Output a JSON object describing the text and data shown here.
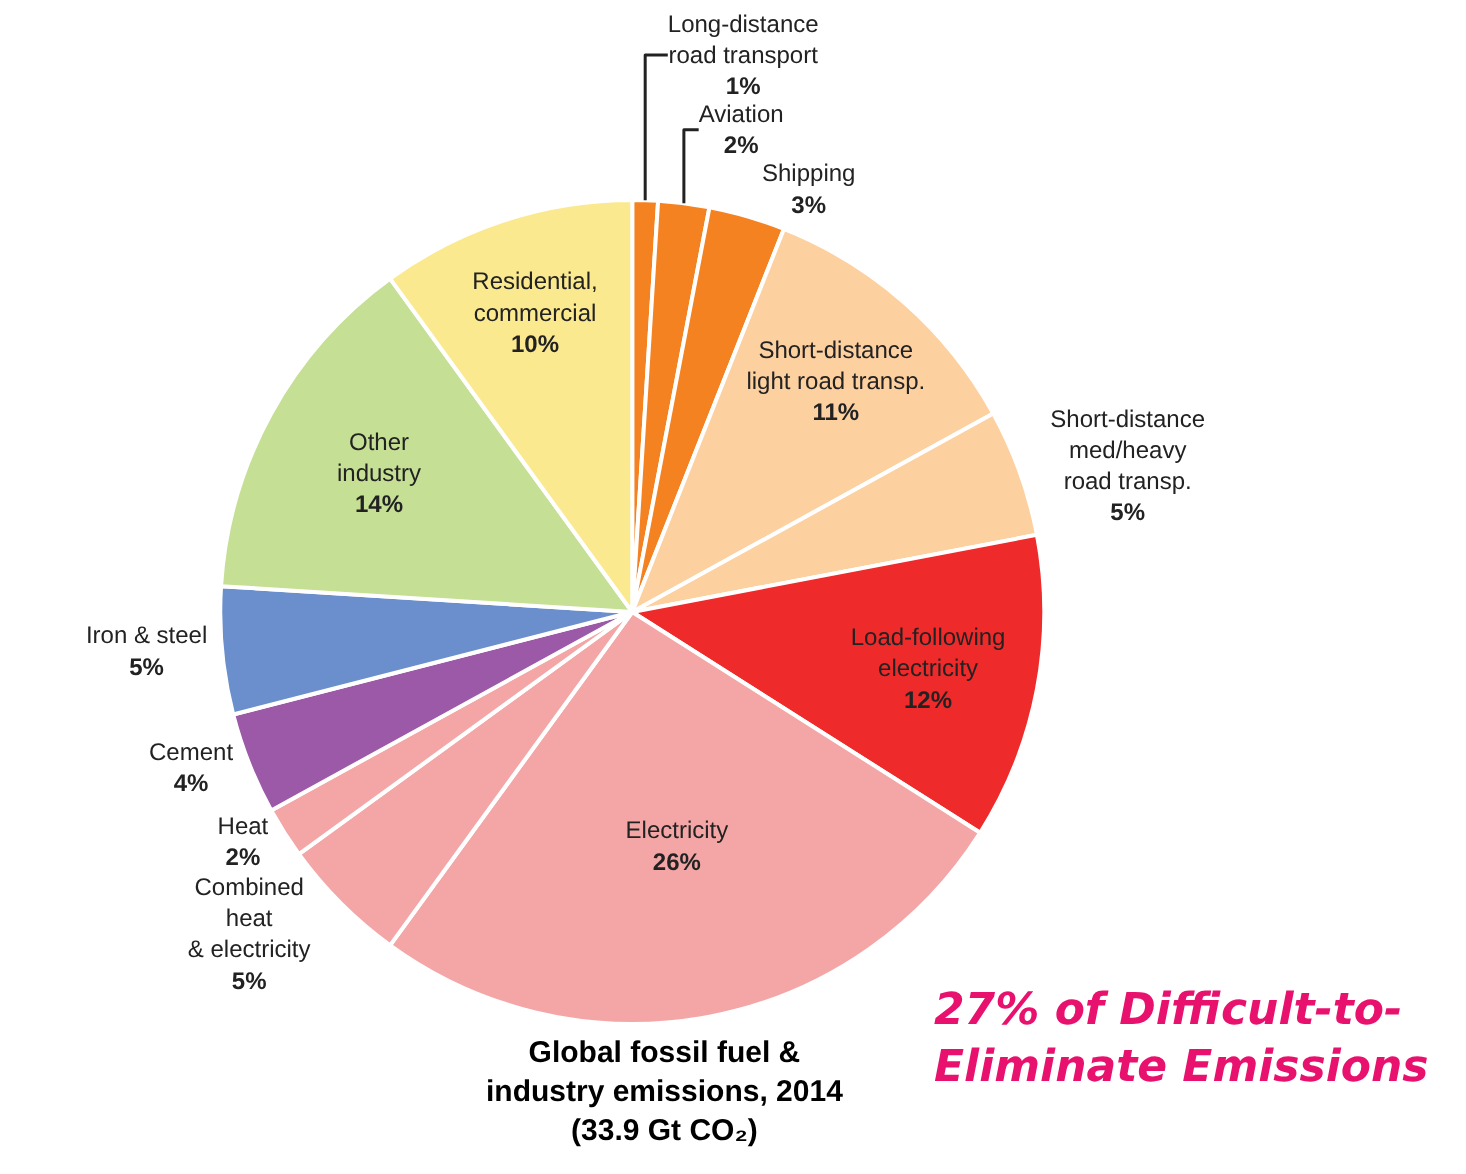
{
  "chart_data": {
    "type": "pie",
    "title": "Global fossil fuel &\nindustry emissions, 2014\n(33.9 Gt CO₂)",
    "categories": [
      "Long-distance\nroad transport",
      "Aviation",
      "Shipping",
      "Short-distance\nlight road transp.",
      "Short-distance\nmed/heavy\nroad transp.",
      "Load-following\nelectricity",
      "Electricity",
      "Combined\nheat\n& electricity",
      "Heat",
      "Cement",
      "Iron & steel",
      "Other\nindustry",
      "Residential,\ncommercial"
    ],
    "values": [
      1,
      2,
      3,
      11,
      5,
      12,
      26,
      5,
      2,
      4,
      5,
      14,
      10
    ],
    "value_labels": [
      "1%",
      "2%",
      "3%",
      "11%",
      "5%",
      "12%",
      "26%",
      "5%",
      "2%",
      "4%",
      "5%",
      "14%",
      "10%"
    ],
    "colors": [
      "#f58220",
      "#f58220",
      "#f58220",
      "#fdd0a0",
      "#fdd0a0",
      "#ee2a2a",
      "#f4a6a6",
      "#f4a6a6",
      "#f4a6a6",
      "#9b59a8",
      "#6a8fcc",
      "#c5df94",
      "#fbe98f"
    ],
    "annotations": [
      "27% of Difficult-to-\nEliminate Emissions"
    ],
    "legend": false
  }
}
